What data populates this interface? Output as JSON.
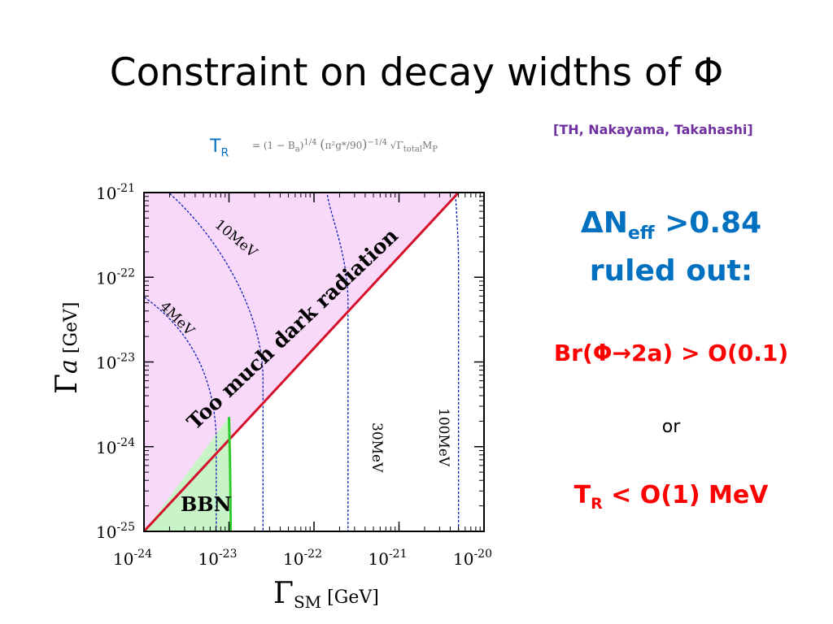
{
  "slide": {
    "title": "Constraint on decay widths of Φ",
    "reference": "[TH, Nakayama, Takahashi]",
    "tr_label": "T",
    "tr_sub": "R",
    "formula": {
      "eq": "= (1 − B",
      "a": "a",
      "quarter": "1/4",
      "frac_num": "π²g*",
      "frac_den": "90",
      "exp": "−1/4",
      "sqrt": "√Γ",
      "total": "total",
      "mp": "M",
      "p": "P"
    }
  },
  "side": {
    "delta_n": "ΔN",
    "eff": "eff",
    "gt": " >0.84",
    "ruled_out": "ruled out:",
    "branching": "Br(Φ→2a) > O(0.1)",
    "or": "or",
    "tr_main": "T",
    "tr_sub": "R",
    "tr_rest": " < O(1) MeV"
  },
  "chart_data": {
    "type": "line",
    "xlabel_main": "Γ",
    "xlabel_sub": "SM",
    "xlabel_unit": " [GeV]",
    "ylabel_main": "Γ",
    "ylabel_sub": "a",
    "ylabel_unit": " [GeV]",
    "x_log_range": [
      -24,
      -20
    ],
    "y_log_range": [
      -25,
      -21
    ],
    "x_ticks": [
      "10-24",
      "10-23",
      "10-22",
      "10-21",
      "10-20"
    ],
    "y_ticks": [
      "10-25",
      "10-24",
      "10-23",
      "10-22",
      "10-21"
    ],
    "region_labels": {
      "dark": "Too much dark radiation",
      "bbn": "BBN"
    },
    "contours": [
      {
        "label": "4MeV",
        "x_asym": -23.15
      },
      {
        "label": "10MeV",
        "x_asym": -22.6
      },
      {
        "label": "30MeV",
        "x_asym": -21.6
      },
      {
        "label": "100MeV",
        "x_asym": -20.3
      }
    ],
    "boundary": {
      "x": [
        -24,
        -20.3
      ],
      "y": [
        -25,
        -21
      ]
    },
    "bbn_edge": {
      "x": -23.0,
      "y_top": -23.65
    },
    "colors": {
      "dark_region": "#f9d9f9",
      "bbn_region": "#c8f4c8",
      "boundary": "#d4102b",
      "bbn_line": "#2ccc2c",
      "contour": "#0a1fb4"
    }
  }
}
